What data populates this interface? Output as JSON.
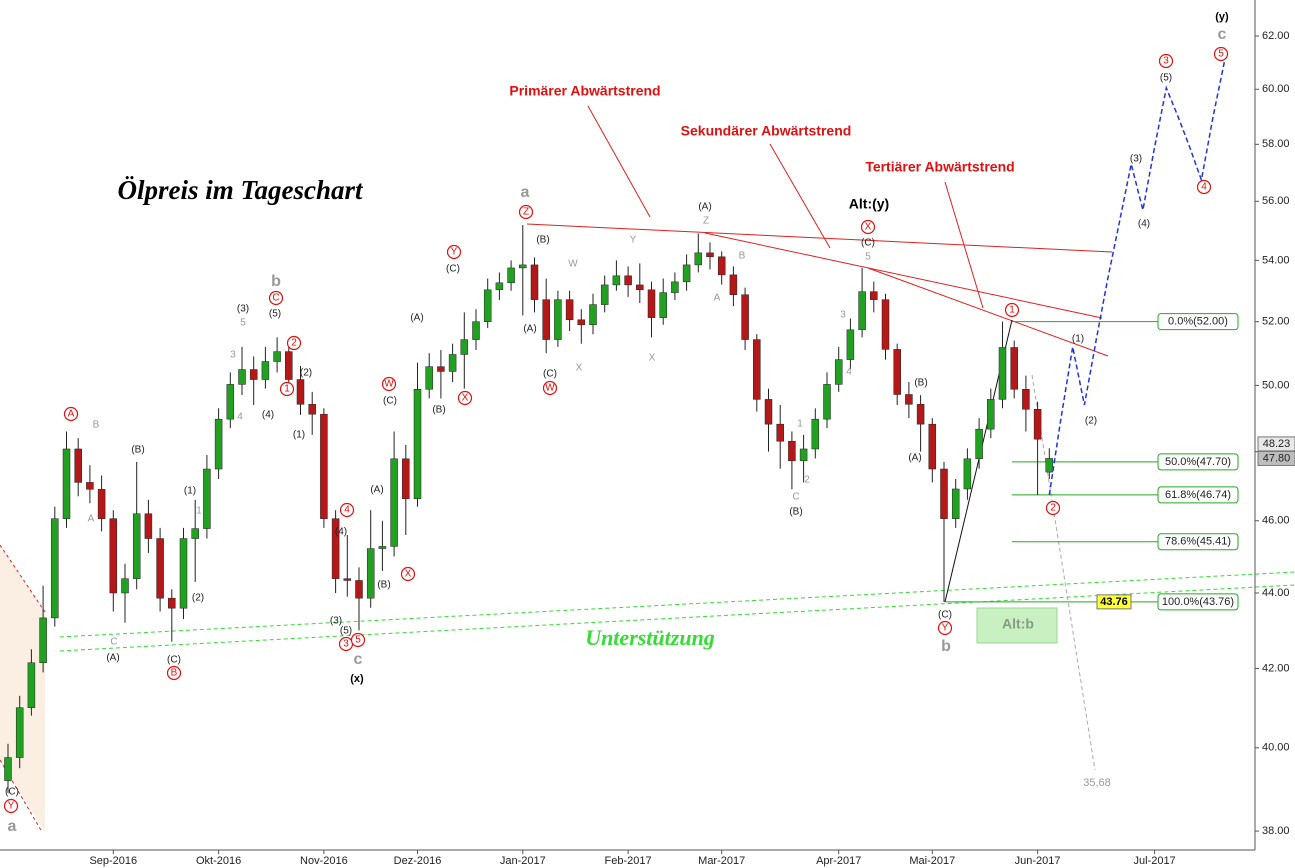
{
  "chart_data": {
    "type": "candlestick",
    "title": "Ölpreis im Tageschart",
    "log_scale": true,
    "ylim": [
      37.56,
      63.39
    ],
    "yticks": [
      {
        "value": 38,
        "label": "38.00"
      },
      {
        "value": 40,
        "label": "40.00"
      },
      {
        "value": 42,
        "label": "42.00"
      },
      {
        "value": 44,
        "label": "44.00"
      },
      {
        "value": 46,
        "label": "46.00"
      },
      {
        "value": 48,
        "label": "48.00"
      },
      {
        "value": 50,
        "label": "50.00"
      },
      {
        "value": 52,
        "label": "52.00"
      },
      {
        "value": 54,
        "label": "54.00"
      },
      {
        "value": 56,
        "label": "56.00"
      },
      {
        "value": 58,
        "label": "58.00"
      },
      {
        "value": 60,
        "label": "60.00"
      },
      {
        "value": 62,
        "label": "62.00"
      }
    ],
    "categories": [
      null,
      null,
      null,
      null,
      null,
      null,
      null,
      null,
      null,
      "Sep-2016",
      null,
      null,
      null,
      null,
      null,
      null,
      null,
      null,
      "Okt-2016",
      null,
      null,
      null,
      null,
      null,
      null,
      null,
      null,
      "Nov-2016",
      null,
      null,
      null,
      null,
      null,
      null,
      null,
      "Dez-2016",
      null,
      null,
      null,
      null,
      null,
      null,
      null,
      null,
      "Jan-2017",
      null,
      null,
      null,
      null,
      null,
      null,
      null,
      null,
      "Feb-2017",
      null,
      null,
      null,
      null,
      null,
      null,
      null,
      "Mar-2017",
      null,
      null,
      null,
      null,
      null,
      null,
      null,
      null,
      null,
      "Apr-2017",
      null,
      null,
      null,
      null,
      null,
      null,
      null,
      "Mai-2017",
      null,
      null,
      null,
      null,
      null,
      null,
      null,
      null,
      "Jun-2017",
      null,
      null,
      null,
      null,
      null,
      null,
      null,
      null,
      null,
      "Jul-2017",
      null,
      null,
      null,
      null,
      null,
      null,
      null,
      null
    ],
    "candles": {
      "up_color": "#22a022",
      "down_color": "#b41818",
      "open": [
        39.2,
        39.76,
        41.0,
        42.15,
        43.33,
        46.06,
        48.08,
        47.1,
        46.9,
        46.06,
        44.0,
        44.39,
        46.2,
        45.5,
        43.86,
        43.59,
        45.5,
        45.78,
        47.49,
        48.97,
        50.03,
        50.49,
        50.18,
        50.74,
        51.05,
        50.18,
        49.42,
        49.12,
        46.06,
        44.39,
        44.34,
        43.86,
        45.22,
        45.28,
        47.79,
        46.63,
        49.88,
        50.58,
        50.43,
        50.96,
        51.43,
        52.0,
        53.03,
        53.26,
        53.75,
        53.85,
        52.71,
        51.43,
        52.71,
        52.06,
        51.9,
        52.55,
        53.19,
        53.49,
        53.19,
        53.03,
        52.13,
        52.94,
        53.29,
        53.85,
        54.25,
        54.12,
        53.52,
        52.87,
        51.43,
        49.57,
        48.82,
        48.31,
        47.73,
        48.08,
        48.97,
        50.03,
        50.8,
        51.74,
        52.97,
        52.71,
        51.12,
        49.72,
        49.42,
        48.82,
        47.49,
        46.06,
        46.91,
        47.79,
        48.67,
        49.57,
        51.18,
        49.88,
        49.27,
        47.4,
        null,
        null,
        null,
        null,
        null,
        null,
        null,
        null,
        null,
        null,
        null,
        null,
        null,
        null,
        null,
        null,
        null
      ],
      "high": [
        40.1,
        41.3,
        42.5,
        44.2,
        46.4,
        48.6,
        48.4,
        47.6,
        47.3,
        46.3,
        44.8,
        47.7,
        46.6,
        45.8,
        44.1,
        45.8,
        46.6,
        47.9,
        49.3,
        50.4,
        51.2,
        50.9,
        51.2,
        51.5,
        51.3,
        50.6,
        49.8,
        49.3,
        46.3,
        45.6,
        44.7,
        46.3,
        46.0,
        48.6,
        48.2,
        50.7,
        51.0,
        51.1,
        51.3,
        52.3,
        52.4,
        53.4,
        53.6,
        54.0,
        55.19,
        54.1,
        53.4,
        53.0,
        53.0,
        52.4,
        52.9,
        53.5,
        54.0,
        53.8,
        53.9,
        53.3,
        53.4,
        53.6,
        54.2,
        54.9,
        54.6,
        54.3,
        53.8,
        53.1,
        51.6,
        49.9,
        49.4,
        48.6,
        48.5,
        49.3,
        50.4,
        51.2,
        52.1,
        53.75,
        53.3,
        52.9,
        51.3,
        50.1,
        49.7,
        49.0,
        47.7,
        47.2,
        48.1,
        49.0,
        49.9,
        52.0,
        51.4,
        50.3,
        49.5,
        48.1,
        null,
        null,
        null,
        null,
        null,
        null,
        null,
        null,
        null,
        null,
        null,
        null,
        null,
        null,
        null,
        null,
        null
      ],
      "low": [
        38.9,
        39.5,
        40.8,
        41.9,
        43.1,
        45.8,
        46.7,
        46.5,
        45.7,
        43.5,
        43.2,
        44.1,
        45.1,
        43.5,
        42.7,
        43.3,
        44.3,
        45.5,
        47.2,
        48.7,
        49.7,
        49.4,
        49.9,
        50.4,
        49.9,
        49.1,
        48.5,
        45.8,
        44.0,
        43.9,
        43.0,
        43.6,
        44.6,
        45.0,
        45.6,
        46.4,
        49.6,
        49.6,
        50.1,
        49.9,
        51.1,
        51.8,
        52.7,
        53.0,
        52.2,
        52.3,
        51.0,
        51.2,
        51.7,
        51.3,
        51.6,
        52.3,
        53.0,
        52.8,
        52.6,
        51.5,
        51.9,
        52.7,
        53.0,
        53.6,
        53.7,
        53.2,
        52.5,
        51.1,
        49.2,
        48.0,
        47.5,
        46.9,
        47.1,
        47.8,
        48.7,
        49.8,
        50.5,
        51.5,
        52.3,
        50.8,
        49.4,
        49.0,
        48.0,
        47.1,
        43.76,
        45.8,
        46.6,
        47.5,
        48.4,
        49.3,
        49.6,
        48.6,
        46.74,
        47.2,
        null,
        null,
        null,
        null,
        null,
        null,
        null,
        null,
        null,
        null,
        null,
        null,
        null,
        null,
        null,
        null,
        null
      ],
      "close": [
        39.76,
        41.0,
        42.15,
        43.33,
        46.06,
        48.08,
        47.1,
        46.9,
        46.06,
        44.0,
        44.39,
        46.2,
        45.5,
        43.86,
        43.59,
        45.5,
        45.78,
        47.49,
        48.97,
        50.03,
        50.49,
        50.18,
        50.74,
        51.05,
        50.18,
        49.42,
        49.12,
        46.06,
        44.39,
        44.34,
        43.86,
        45.22,
        45.28,
        47.79,
        46.63,
        49.88,
        50.58,
        50.43,
        50.96,
        51.43,
        52.0,
        53.03,
        53.26,
        53.75,
        53.85,
        52.71,
        51.43,
        52.71,
        52.06,
        51.9,
        52.55,
        53.19,
        53.49,
        53.19,
        53.03,
        52.13,
        52.94,
        53.29,
        53.85,
        54.25,
        54.12,
        53.52,
        52.87,
        51.43,
        49.57,
        48.82,
        48.31,
        47.73,
        48.08,
        48.97,
        50.03,
        50.8,
        51.74,
        52.97,
        52.71,
        51.12,
        49.72,
        49.42,
        48.82,
        47.49,
        46.06,
        46.91,
        47.79,
        48.67,
        49.57,
        51.18,
        49.88,
        49.27,
        48.37,
        47.8,
        null,
        null,
        null,
        null,
        null,
        null,
        null,
        null,
        null,
        null,
        null,
        null,
        null,
        null,
        null,
        null,
        null
      ]
    },
    "projection": {
      "color": "#2233dd",
      "values": [
        null,
        null,
        null,
        null,
        null,
        null,
        null,
        null,
        null,
        null,
        null,
        null,
        null,
        null,
        null,
        null,
        null,
        null,
        null,
        null,
        null,
        null,
        null,
        null,
        null,
        null,
        null,
        null,
        null,
        null,
        null,
        null,
        null,
        null,
        null,
        null,
        null,
        null,
        null,
        null,
        null,
        null,
        null,
        null,
        null,
        null,
        null,
        null,
        null,
        null,
        null,
        null,
        null,
        null,
        null,
        null,
        null,
        null,
        null,
        null,
        null,
        null,
        null,
        null,
        null,
        null,
        null,
        null,
        null,
        null,
        null,
        null,
        null,
        null,
        null,
        null,
        null,
        null,
        null,
        null,
        null,
        null,
        null,
        null,
        null,
        null,
        null,
        null,
        null,
        46.74,
        49.0,
        51.2,
        49.4,
        51.4,
        53.4,
        55.3,
        57.3,
        55.7,
        57.9,
        60.05,
        59.0,
        57.9,
        56.74,
        59.0,
        61.1,
        null,
        null
      ]
    },
    "fibonacci": {
      "color": "#22aa22",
      "levels": [
        {
          "value": 52.0,
          "label": "0.0%(52.00)"
        },
        {
          "value": 47.7,
          "label": "50.0%(47.70)"
        },
        {
          "value": 46.74,
          "label": "61.8%(46.74)"
        },
        {
          "value": 45.41,
          "label": "78.6%(45.41)"
        },
        {
          "value": 43.76,
          "label": "100.0%(43.76)"
        }
      ]
    },
    "price_markers": [
      {
        "value": 48.23,
        "color": "#e8e8e8"
      },
      {
        "value": {
          "value": 47.8,
          "label": "47.80"
        },
        "color": "#bdbdbd"
      },
      {
        "value": 43.76,
        "color": "#ffff33"
      }
    ],
    "annotations": [
      "Unterstützung",
      "Primärer Abwärtstrend",
      "Sekundärer Abwärtstrend",
      "Tertiärer Abwärtstrend",
      "Alt:(y)",
      "Alt:b",
      "35,68",
      "a",
      "Y",
      "(C)",
      "A",
      "B",
      "A",
      "C",
      "(A)",
      "(B)",
      "(C)",
      "B",
      "(1)",
      "(2)",
      "1",
      "3",
      "4",
      "(3)",
      "5",
      "(4)",
      "(5)",
      "b",
      "C",
      "2",
      "1",
      "(2)",
      "(1)",
      "(3)",
      "(4)",
      "4",
      "(5)",
      "3",
      "5",
      "c",
      "(x)",
      "(A)",
      "(B)",
      "X",
      "W",
      "(C)",
      "(A)",
      "(B)",
      "Y",
      "(C)",
      "X",
      "a",
      "Z",
      "(B)",
      "(A)",
      "(C)",
      "W",
      "W",
      "X",
      "Y",
      "X",
      "(A)",
      "Z",
      "B",
      "A",
      "1",
      "2",
      "C",
      "(B)",
      "3",
      "4",
      "5",
      "(C)",
      "X",
      "(B)",
      "(A)",
      "(C)",
      "Y",
      "b",
      "1",
      "2",
      "(1)",
      "(2)",
      "(3)",
      "(4)",
      "(5)",
      "3",
      "4",
      "5",
      "c",
      "(y)"
    ]
  }
}
